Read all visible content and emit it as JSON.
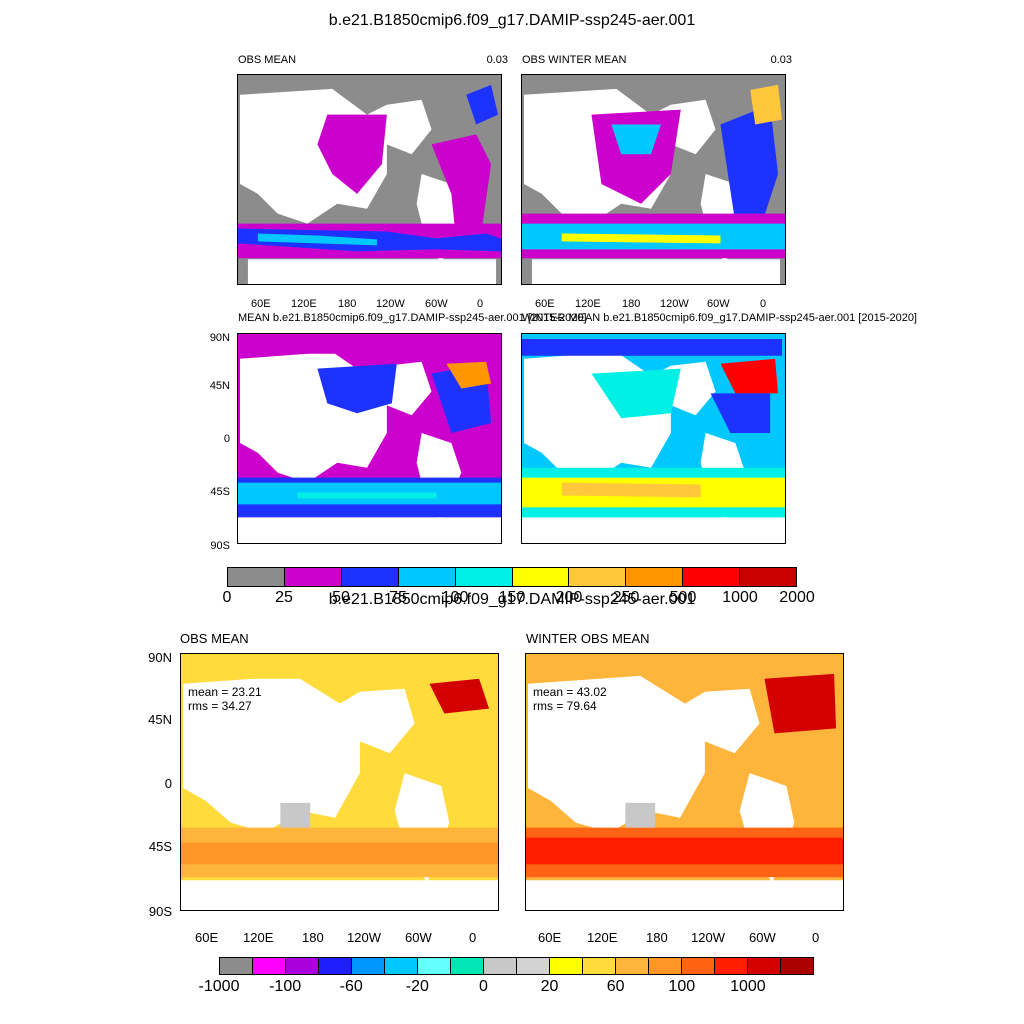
{
  "top_title": "b.e21.B1850cmip6.f09_g17.DAMIP-ssp245-aer.001",
  "bottom_title": "b.e21.B1850cmip6.f09_g17.DAMIP-ssp245-aer.001",
  "panels": {
    "p1": {
      "left_title": "OBS MEAN",
      "right_value": "0.03"
    },
    "p2": {
      "left_title": "OBS WINTER MEAN",
      "right_value": "0.03"
    },
    "p3": {
      "left_title": "MEAN b.e21.B1850cmip6.f09_g17.DAMIP-ssp245-aer.001 [2015-2020]"
    },
    "p4": {
      "left_title": "WINTER MEAN b.e21.B1850cmip6.f09_g17.DAMIP-ssp245-aer.001 [2015-2020]"
    },
    "p5": {
      "left_title": "OBS MEAN",
      "stat_mean": "mean = 23.21",
      "stat_rms": "rms = 34.27"
    },
    "p6": {
      "left_title": "WINTER OBS MEAN",
      "stat_mean": "mean = 43.02",
      "stat_rms": "rms = 79.64"
    }
  },
  "lon_ticks": [
    "60E",
    "120E",
    "180",
    "120W",
    "60W",
    "0"
  ],
  "lat_ticks": [
    "90N",
    "45N",
    "0",
    "45S",
    "90S"
  ],
  "colorbar_top": {
    "labels": [
      "0",
      "25",
      "50",
      "75",
      "100",
      "150",
      "200",
      "250",
      "500",
      "1000",
      "2000"
    ],
    "colors": [
      "#8c8c8c",
      "#cc00cc",
      "#1e32ff",
      "#00c8ff",
      "#00f0e6",
      "#ffff00",
      "#ffc83c",
      "#ff9600",
      "#ff0000",
      "#c80000"
    ]
  },
  "colorbar_bottom": {
    "labels": [
      "-1000",
      "-100",
      "-60",
      "-20",
      "0",
      "20",
      "60",
      "100",
      "1000"
    ],
    "colors": [
      "#8c8c8c",
      "#ff00ff",
      "#aa00dd",
      "#1e1eff",
      "#0096ff",
      "#00c8ff",
      "#64ffff",
      "#00e6b4",
      "#c8c8c8",
      "#d2d2d2",
      "#ffff00",
      "#ffdc3c",
      "#ffb43c",
      "#ff9628",
      "#ff6414",
      "#ff1e00",
      "#d20000",
      "#aa0000"
    ]
  }
}
